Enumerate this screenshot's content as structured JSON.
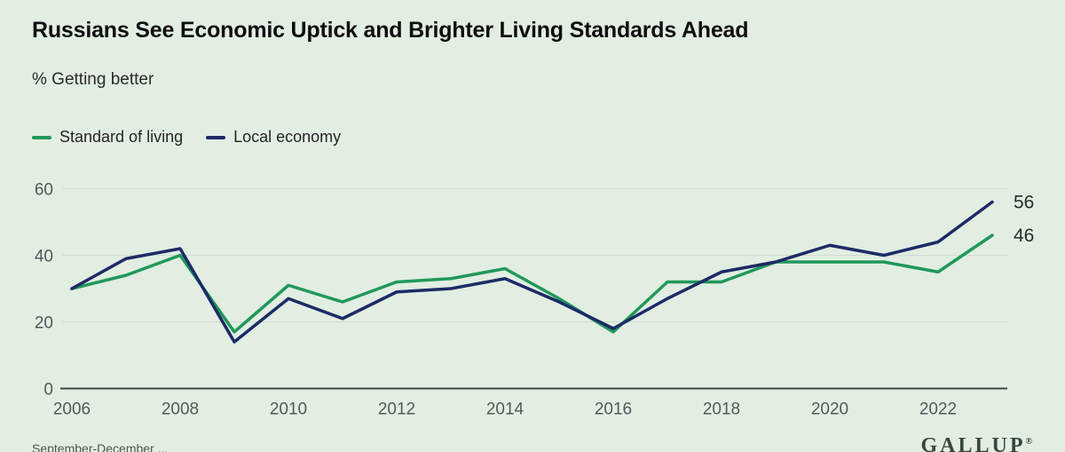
{
  "chart_data": {
    "type": "line",
    "title": "Russians See Economic Uptick and Brighter Living Standards Ahead",
    "subtitle": "% Getting better",
    "x": [
      2006,
      2007,
      2008,
      2009,
      2010,
      2011,
      2012,
      2013,
      2014,
      2015,
      2016,
      2017,
      2018,
      2019,
      2020,
      2021,
      2022,
      2023
    ],
    "xtick_labels": [
      "2006",
      "2008",
      "2010",
      "2012",
      "2014",
      "2016",
      "2018",
      "2020",
      "2022"
    ],
    "yticks": [
      0,
      20,
      40,
      60
    ],
    "ylim": [
      0,
      62
    ],
    "grid": true,
    "legend_position": "top-left",
    "series": [
      {
        "name": "Standard of living",
        "color": "#20985a",
        "values": [
          30,
          34,
          40,
          17,
          31,
          26,
          32,
          33,
          36,
          27,
          17,
          32,
          32,
          38,
          38,
          38,
          35,
          46
        ],
        "end_label": "46"
      },
      {
        "name": "Local economy",
        "color": "#1c2b66",
        "values": [
          30,
          39,
          42,
          14,
          27,
          21,
          29,
          30,
          33,
          26,
          18,
          27,
          35,
          38,
          43,
          40,
          44,
          56
        ],
        "end_label": "56"
      }
    ],
    "colors": {
      "background": "#e2eee2",
      "gridline": "#d0ded0",
      "axis": "#3f453f",
      "tick_text": "#54585a",
      "end_label_text": "#2b2b2b"
    },
    "footnote_fragment": "September-December ...",
    "brand": "GALLUP",
    "brand_mark": "®"
  }
}
